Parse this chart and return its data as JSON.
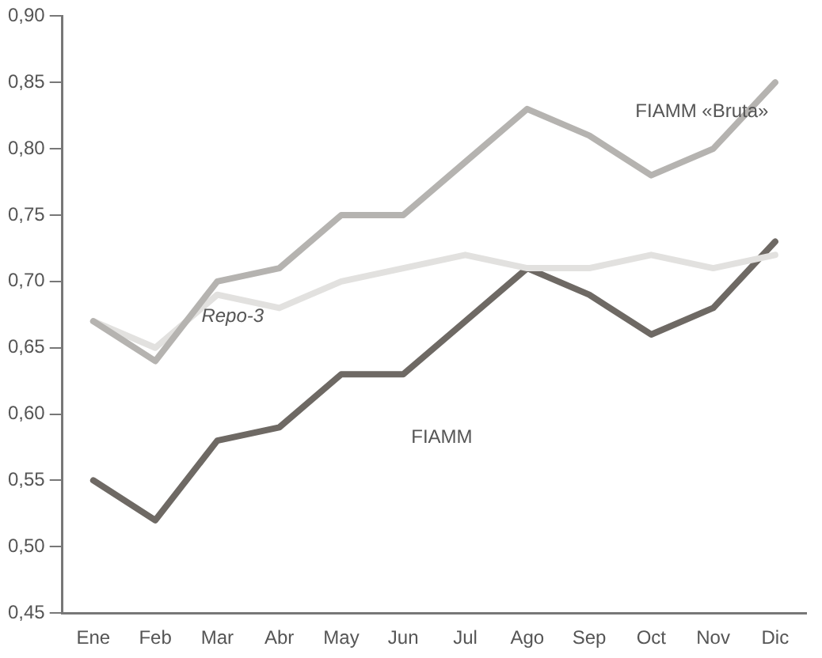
{
  "chart_data": {
    "type": "line",
    "categories": [
      "Ene",
      "Feb",
      "Mar",
      "Abr",
      "May",
      "Jun",
      "Jul",
      "Ago",
      "Sep",
      "Oct",
      "Nov",
      "Dic"
    ],
    "series": [
      {
        "name": "FIAMM «Bruta»",
        "color": "#b5b3b0",
        "values": [
          0.67,
          0.64,
          0.7,
          0.71,
          0.75,
          0.75,
          0.79,
          0.83,
          0.81,
          0.78,
          0.8,
          0.85
        ]
      },
      {
        "name": "Repo-3",
        "color": "#e2e1df",
        "values": [
          0.67,
          0.65,
          0.69,
          0.68,
          0.7,
          0.71,
          0.72,
          0.71,
          0.71,
          0.72,
          0.71,
          0.72
        ]
      },
      {
        "name": "FIAMM",
        "color": "#6e6964",
        "values": [
          0.55,
          0.52,
          0.58,
          0.59,
          0.63,
          0.63,
          0.67,
          0.71,
          0.69,
          0.66,
          0.68,
          0.73
        ]
      }
    ],
    "ylim": [
      0.45,
      0.9
    ],
    "yticks": [
      {
        "value": 0.45,
        "label": "0,45"
      },
      {
        "value": 0.5,
        "label": "0,50"
      },
      {
        "value": 0.55,
        "label": "0,55"
      },
      {
        "value": 0.6,
        "label": "0,60"
      },
      {
        "value": 0.65,
        "label": "0,65"
      },
      {
        "value": 0.7,
        "label": "0,70"
      },
      {
        "value": 0.75,
        "label": "0,75"
      },
      {
        "value": 0.8,
        "label": "0,80"
      },
      {
        "value": 0.85,
        "label": "0,85"
      },
      {
        "value": 0.9,
        "label": "0,90"
      }
    ],
    "grid": false,
    "legend": false,
    "marker": "none",
    "line_style": "solid"
  }
}
